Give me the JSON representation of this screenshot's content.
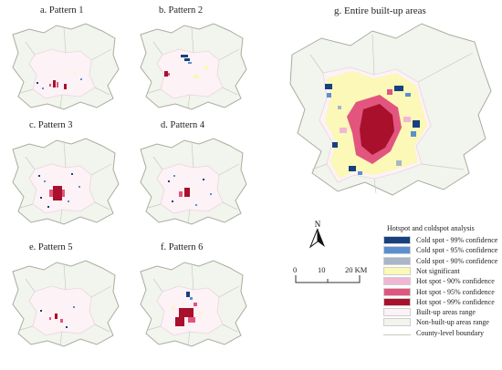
{
  "panels": [
    {
      "id": "a",
      "title": "a. Pattern 1"
    },
    {
      "id": "b",
      "title": "b. Pattern  2"
    },
    {
      "id": "c",
      "title": "c. Pattern  3"
    },
    {
      "id": "d",
      "title": "d. Pattern 4"
    },
    {
      "id": "e",
      "title": "e. Pattern 5"
    },
    {
      "id": "f",
      "title": "f. Pattern 6"
    },
    {
      "id": "g",
      "title": "g. Entire built-up areas"
    }
  ],
  "north_label": "N",
  "scale": {
    "ticks": [
      "0",
      "10",
      "20 KM"
    ]
  },
  "legend": {
    "title": "Hotspot and coldspot analysis",
    "items": [
      {
        "label": "Cold spot - 99% confidence",
        "color": "#16407f"
      },
      {
        "label": "Cold spot - 95% confidence",
        "color": "#5b8fd1"
      },
      {
        "label": "Cold spot - 90% confidence",
        "color": "#a9b6c7"
      },
      {
        "label": "Not significant",
        "color": "#fbf8b8"
      },
      {
        "label": "Hot spot - 90% confidence",
        "color": "#f1b6d6"
      },
      {
        "label": "Hot spot - 95% confidence",
        "color": "#e2557f"
      },
      {
        "label": "Hot spot - 99% confidence",
        "color": "#a8102c"
      },
      {
        "label": "Built-up areas range",
        "color": "#fdf2f6"
      },
      {
        "label": "Non-built-up areas range",
        "color": "#f2f4ee"
      },
      {
        "label": "County-level boundary",
        "color": "#ffffff"
      }
    ]
  },
  "colors": {
    "outside": "#f2f4ee",
    "builtup": "#fdf2f6",
    "boundary": "#a7ad9e"
  }
}
